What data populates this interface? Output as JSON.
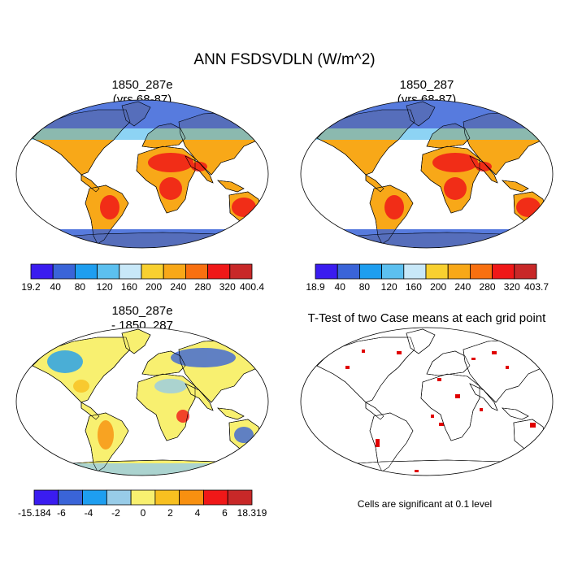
{
  "main_title": "ANN FSDSVDLN (W/m^2)",
  "panels": {
    "top_left": {
      "title_line1": "1850_287e",
      "title_line2": "(yrs 68-87)"
    },
    "top_right": {
      "title_line1": "1850_287",
      "title_line2": "(yrs 68-87)"
    },
    "bottom_left": {
      "title_line1": "1850_287e",
      "title_line2": "- 1850_287"
    },
    "bottom_right": {
      "title": "T-Test of two Case means at each grid point",
      "note": "Cells are significant at 0.1 level"
    }
  },
  "colorbars": {
    "top_left": {
      "labels": [
        "19.2",
        "40",
        "80",
        "120",
        "160",
        "200",
        "240",
        "280",
        "320",
        "400.4"
      ],
      "colors": [
        "#3a1cf0",
        "#3a64d8",
        "#1e9ef0",
        "#5cc0f0",
        "#c8e8f8",
        "#f8d030",
        "#f8a818",
        "#f87010",
        "#f01818",
        "#c82828"
      ]
    },
    "top_right": {
      "labels": [
        "18.9",
        "40",
        "80",
        "120",
        "160",
        "200",
        "240",
        "280",
        "320",
        "403.7"
      ],
      "colors": [
        "#3a1cf0",
        "#3a64d8",
        "#1e9ef0",
        "#5cc0f0",
        "#c8e8f8",
        "#f8d030",
        "#f8a818",
        "#f87010",
        "#f01818",
        "#c82828"
      ]
    },
    "bottom_left": {
      "labels": [
        "-15.184",
        "-6",
        "-4",
        "-2",
        "0",
        "2",
        "4",
        "6",
        "18.319"
      ],
      "colors": [
        "#3a1cf0",
        "#3a64d8",
        "#1e9ef0",
        "#98cce8",
        "#f8f070",
        "#f8c020",
        "#f89010",
        "#f01818",
        "#c82828"
      ]
    }
  },
  "colors": {
    "land_outline": "#000000",
    "significance": "#e00000"
  }
}
